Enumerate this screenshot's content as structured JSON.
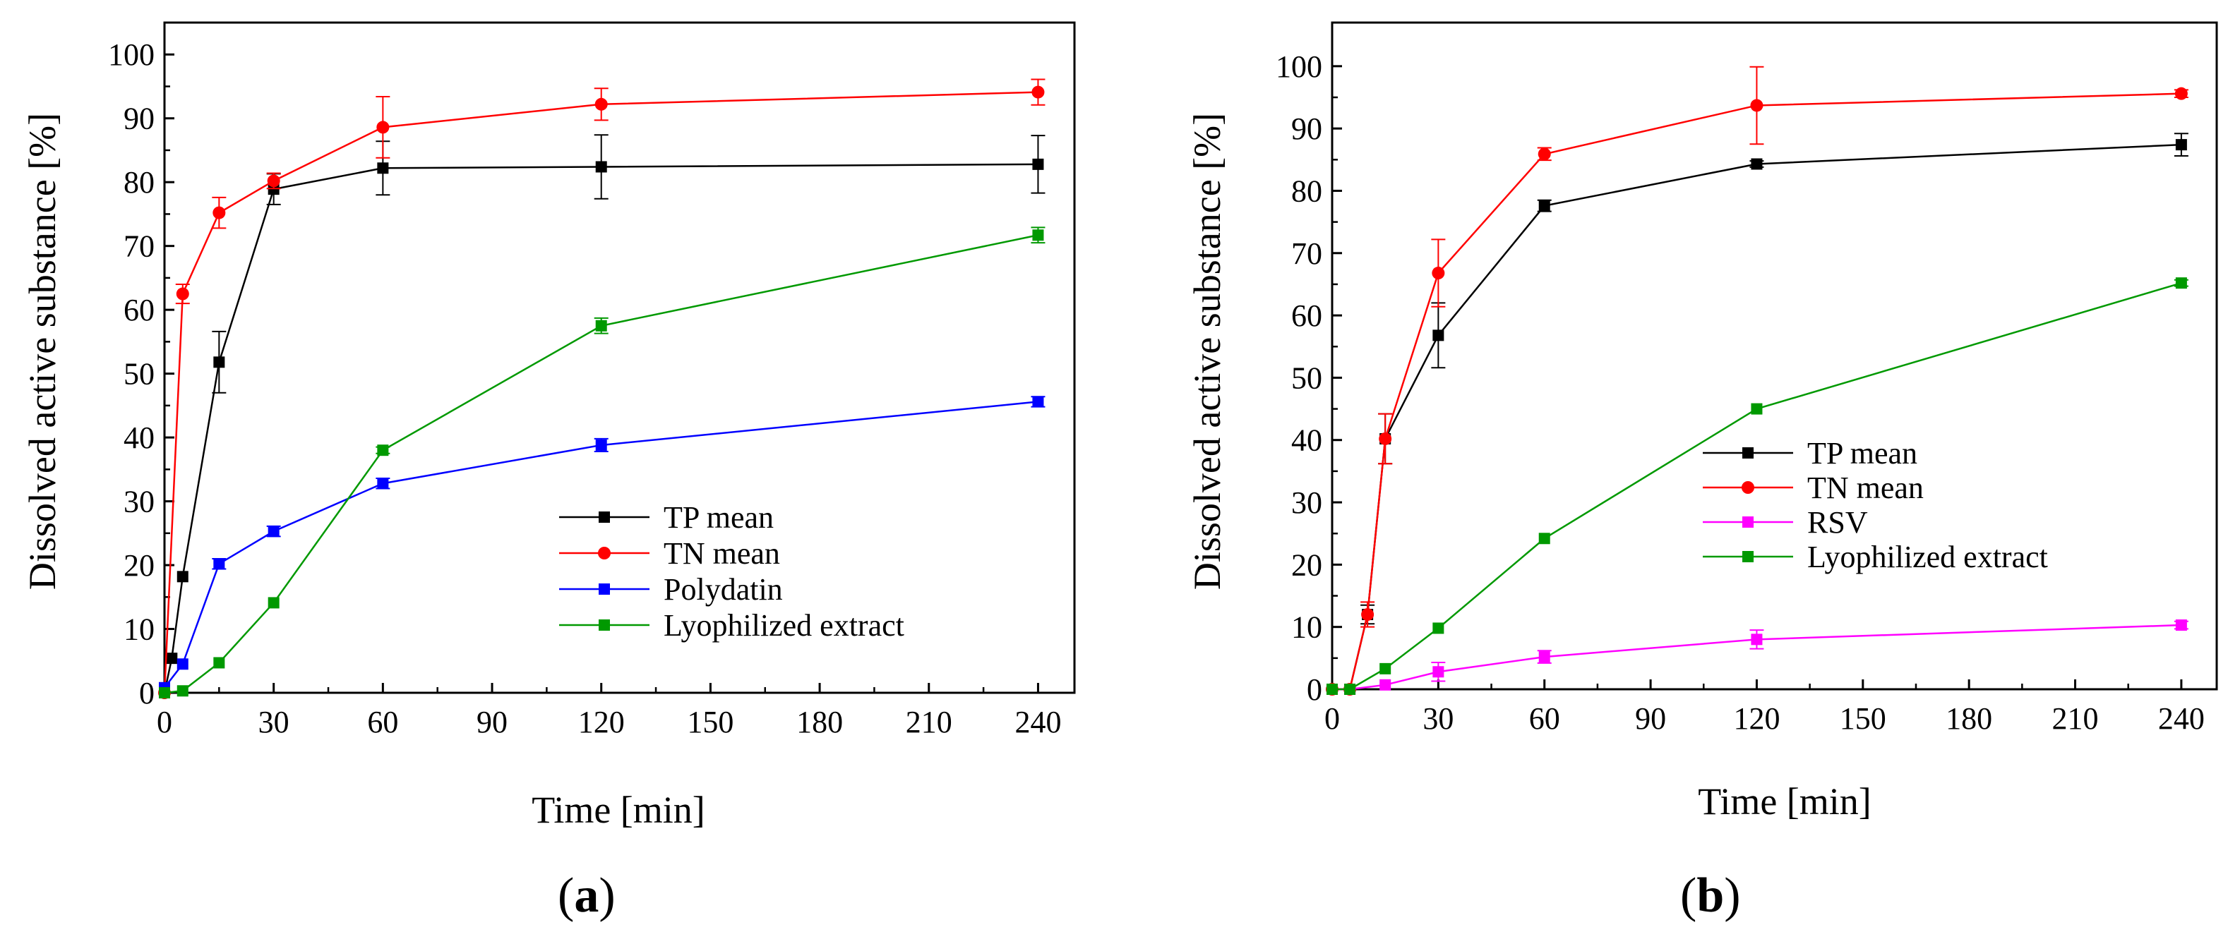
{
  "chart_data": [
    {
      "type": "line",
      "panel": "(a)",
      "panel_letter": "a",
      "xlabel": "Time [min]",
      "ylabel": "Dissolved active substance [%]",
      "xlim": [
        0,
        250
      ],
      "ylim": [
        0,
        105
      ],
      "xticks": [
        0,
        30,
        60,
        90,
        120,
        150,
        180,
        210,
        240
      ],
      "yticks": [
        0,
        10,
        20,
        30,
        40,
        50,
        60,
        70,
        80,
        90,
        100
      ],
      "legend_position": "bottom-right",
      "series": [
        {
          "name": "TP mean",
          "color": "#000000",
          "marker": "square",
          "x": [
            0,
            2,
            5,
            15,
            30,
            60,
            120,
            240
          ],
          "y": [
            0,
            5.4,
            18.2,
            51.8,
            78.9,
            82.2,
            82.4,
            82.8
          ],
          "err": [
            0,
            0,
            0,
            4.8,
            2.4,
            4.2,
            5.0,
            4.5
          ]
        },
        {
          "name": "TN mean",
          "color": "#ff0000",
          "marker": "circle",
          "x": [
            0,
            5,
            15,
            30,
            60,
            120,
            240
          ],
          "y": [
            0,
            62.5,
            75.2,
            80.2,
            88.6,
            92.2,
            94.1
          ],
          "err": [
            0,
            1.5,
            2.4,
            1.2,
            4.8,
            2.5,
            2.0
          ]
        },
        {
          "name": "Polydatin",
          "color": "#0000ff",
          "marker": "square",
          "x": [
            0,
            5,
            15,
            30,
            60,
            120,
            240
          ],
          "y": [
            0.8,
            4.5,
            20.2,
            25.3,
            32.8,
            38.8,
            45.6
          ],
          "err": [
            0,
            0,
            0.8,
            0.8,
            0.8,
            1.0,
            0.8
          ]
        },
        {
          "name": "Lyophilized extract",
          "color": "#009900",
          "marker": "square",
          "x": [
            0,
            5,
            15,
            30,
            60,
            120,
            240
          ],
          "y": [
            0,
            0.3,
            4.7,
            14.1,
            38.0,
            57.5,
            71.7
          ],
          "err": [
            0,
            0,
            0,
            0,
            0.5,
            1.2,
            1.2
          ]
        }
      ]
    },
    {
      "type": "line",
      "panel": "(b)",
      "panel_letter": "b",
      "xlabel": "Time [min]",
      "ylabel": "Dissolved active substance [%]",
      "xlim": [
        0,
        250
      ],
      "ylim": [
        0,
        107
      ],
      "xticks": [
        0,
        30,
        60,
        90,
        120,
        150,
        180,
        210,
        240
      ],
      "yticks": [
        0,
        10,
        20,
        30,
        40,
        50,
        60,
        70,
        80,
        90,
        100
      ],
      "legend_position": "center-right",
      "series": [
        {
          "name": "TP mean",
          "color": "#000000",
          "marker": "square",
          "x": [
            0,
            5,
            10,
            15,
            30,
            60,
            120,
            240
          ],
          "y": [
            0,
            0,
            12.0,
            40.2,
            56.8,
            77.6,
            84.3,
            87.4
          ],
          "err": [
            0,
            0,
            1.5,
            4.0,
            5.2,
            0.9,
            0.5,
            1.8
          ]
        },
        {
          "name": "TN mean",
          "color": "#ff0000",
          "marker": "circle",
          "x": [
            0,
            5,
            10,
            15,
            30,
            60,
            120,
            240
          ],
          "y": [
            0,
            0,
            12.0,
            40.2,
            66.8,
            85.9,
            93.7,
            95.6
          ],
          "err": [
            0,
            0,
            2.0,
            4.0,
            5.4,
            1.0,
            6.2,
            0.6
          ]
        },
        {
          "name": "RSV",
          "color": "#ff00ff",
          "marker": "square",
          "x": [
            0,
            5,
            15,
            30,
            60,
            120,
            240
          ],
          "y": [
            0,
            0,
            0.7,
            2.8,
            5.2,
            8.0,
            10.3
          ],
          "err": [
            0,
            0,
            0,
            1.5,
            1.0,
            1.5,
            0.6
          ]
        },
        {
          "name": "Lyophilized extract",
          "color": "#009900",
          "marker": "square",
          "x": [
            0,
            5,
            15,
            30,
            60,
            120,
            240
          ],
          "y": [
            0,
            0,
            3.3,
            9.8,
            24.2,
            45.0,
            65.2
          ],
          "err": [
            0,
            0,
            0,
            0,
            0,
            0,
            0.5
          ]
        }
      ]
    }
  ]
}
